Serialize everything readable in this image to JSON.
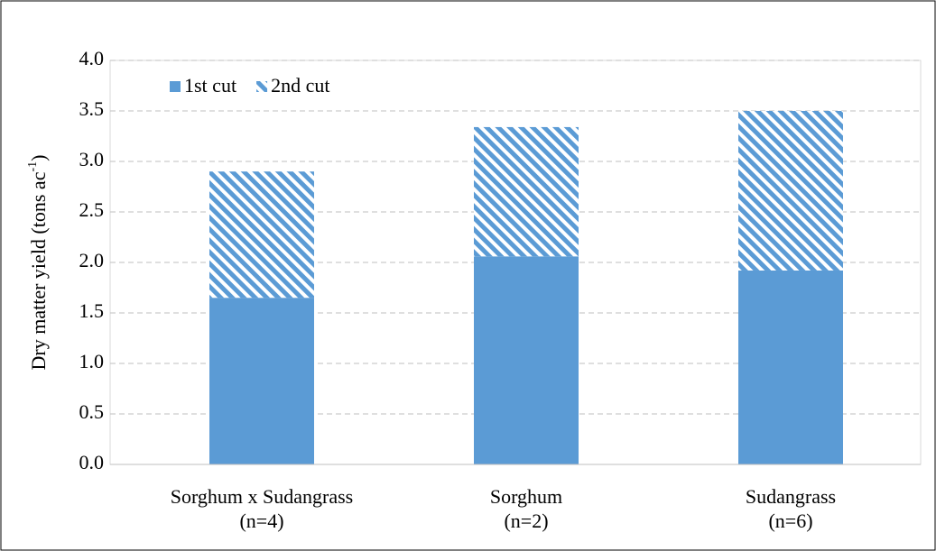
{
  "chart_data": {
    "type": "stacked_bar",
    "ylabel": {
      "text": "Dry matter yield (tons ac",
      "superscript": "-1",
      "suffix": ")"
    },
    "categories": [
      "Sorghum x Sudangrass",
      "Sorghum",
      "Sudangrass"
    ],
    "category_counts": [
      "(n=4)",
      "(n=2)",
      "(n=6)"
    ],
    "series": [
      {
        "name": "1st cut",
        "color": "#5b9bd5",
        "hatch": false,
        "values": [
          1.65,
          2.06,
          1.92
        ]
      },
      {
        "name": "2nd cut",
        "color": "#5b9bd5",
        "hatch": true,
        "values": [
          1.25,
          1.28,
          1.58
        ]
      }
    ],
    "ylim": [
      0,
      4
    ],
    "yticks": [
      {
        "value": 0,
        "label": "0.0"
      },
      0.5,
      {
        "value": 1,
        "label": "1.0"
      },
      1.5,
      {
        "value": 2,
        "label": "2.0"
      },
      2.5,
      {
        "value": 3,
        "label": "3.0"
      },
      3.5,
      {
        "value": 4,
        "label": "4.0"
      }
    ],
    "grid": true,
    "legend": "top-left"
  }
}
